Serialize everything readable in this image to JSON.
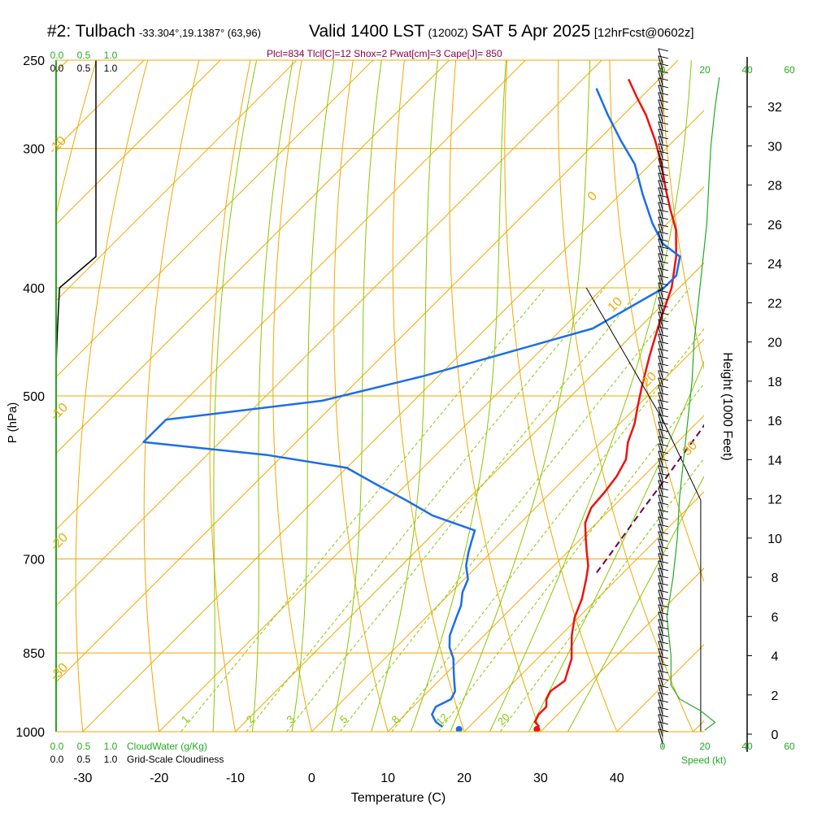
{
  "header": {
    "site": "#2: Tulbach",
    "coords": "-33.304°,19.1387° (63,96)",
    "valid": "Valid 1400 LST",
    "zulu": "(1200Z)",
    "date": "SAT 5 Apr 2025",
    "forecast": "[12hrFcst@0602z]",
    "params": "Plcl=834 Tlcl[C]=12 Shox=2 Pwat[cm]=3 Cape[J]= 850"
  },
  "colors": {
    "isotherm": "#f0a800",
    "dry_adiabat": "#f0a800",
    "moist_adiabat": "#88c800",
    "mixing_ratio": "#88c800",
    "temperature": "#ee1111",
    "dewpoint": "#1a6ee8",
    "parcel": "#6a0048",
    "cloudwater_scale": "#22aa22",
    "speed_profile": "#22aa22",
    "cloudiness": "#000000",
    "params_text": "#8b0045"
  },
  "left_scales": {
    "cloudwater_top": [
      "0.0",
      "0.5",
      "1.0"
    ],
    "cloudiness_top": [
      "0.0",
      "0.5",
      "1.0"
    ],
    "cloudwater_bottom": [
      "0.0",
      "0.5",
      "1.0"
    ],
    "cloudwater_label": "CloudWater (g/Kg)",
    "cloudiness_bottom": [
      "0.0",
      "0.5",
      "1.0"
    ],
    "cloudiness_label": "Grid-Scale Cloudiness"
  },
  "right_scales": {
    "speed_ticks": [
      "0",
      "20",
      "40",
      "60"
    ],
    "speed_label": "Speed (kt)",
    "height_label": "Height (1000 Feet)"
  },
  "chart_data": {
    "type": "line",
    "title": "Skew-T log-P sounding",
    "xlabel": "Temperature (C)",
    "ylabel": "P (hPa)",
    "x_ticks": [
      -30,
      -20,
      -10,
      0,
      10,
      20,
      30,
      40
    ],
    "xlim": [
      -33.5,
      46
    ],
    "pressure_ticks": [
      250,
      300,
      400,
      500,
      700,
      850,
      1000
    ],
    "ylim_pressure": [
      1000,
      250
    ],
    "scale": "log-pressure",
    "height_ticks_kft": [
      0,
      2,
      4,
      6,
      8,
      10,
      12,
      14,
      16,
      18,
      20,
      22,
      24,
      26,
      28,
      30,
      32
    ],
    "isotherm_labels": [
      {
        "label": "-10",
        "temp": -10
      },
      {
        "label": "0",
        "temp": 0
      },
      {
        "label": "10",
        "temp": 10
      },
      {
        "label": "20",
        "temp": 20
      },
      {
        "label": "30",
        "temp": 30
      },
      {
        "label": "-10",
        "temp": -10
      },
      {
        "label": "-20",
        "temp": -20
      },
      {
        "label": "-30",
        "temp": -30
      }
    ],
    "mixing_ratio_labels": [
      "1",
      "2",
      "3",
      "5",
      "8",
      "12",
      "20"
    ],
    "series": [
      {
        "name": "Temperature",
        "points": [
          [
            29.2,
            990
          ],
          [
            28.0,
            980
          ],
          [
            27.5,
            965
          ],
          [
            27.5,
            950
          ],
          [
            26.5,
            935
          ],
          [
            26.0,
            920
          ],
          [
            26.5,
            900
          ],
          [
            25.5,
            880
          ],
          [
            24.5,
            860
          ],
          [
            23.0,
            840
          ],
          [
            21.5,
            820
          ],
          [
            19.5,
            790
          ],
          [
            18.0,
            760
          ],
          [
            16.0,
            730
          ],
          [
            14.5,
            710
          ],
          [
            12.5,
            690
          ],
          [
            10.5,
            670
          ],
          [
            8.5,
            650
          ],
          [
            7.3,
            630
          ],
          [
            7.0,
            610
          ],
          [
            6.5,
            590
          ],
          [
            5.5,
            570
          ],
          [
            3.5,
            550
          ],
          [
            2.0,
            530
          ],
          [
            0.0,
            510
          ],
          [
            -2.0,
            490
          ],
          [
            -5.0,
            460
          ],
          [
            -8.0,
            430
          ],
          [
            -11.0,
            400
          ],
          [
            -14.5,
            375
          ],
          [
            -18.0,
            355
          ],
          [
            -21.5,
            340
          ],
          [
            -25.0,
            325
          ],
          [
            -28.5,
            310
          ],
          [
            -32.5,
            295
          ],
          [
            -37.0,
            280
          ],
          [
            -40.5,
            270
          ],
          [
            -44.0,
            260
          ]
        ]
      },
      {
        "name": "Dewpoint",
        "points": [
          [
            16.5,
            990
          ],
          [
            15.0,
            980
          ],
          [
            13.5,
            965
          ],
          [
            13.0,
            950
          ],
          [
            14.0,
            935
          ],
          [
            13.5,
            920
          ],
          [
            12.0,
            900
          ],
          [
            10.5,
            880
          ],
          [
            9.0,
            860
          ],
          [
            7.0,
            840
          ],
          [
            5.5,
            820
          ],
          [
            4.0,
            790
          ],
          [
            3.0,
            770
          ],
          [
            1.5,
            750
          ],
          [
            0.5,
            730
          ],
          [
            -1.5,
            710
          ],
          [
            -3.0,
            690
          ],
          [
            -4.0,
            675
          ],
          [
            -5.0,
            660
          ],
          [
            -12.5,
            640
          ],
          [
            -18.0,
            620
          ],
          [
            -24.0,
            600
          ],
          [
            -30.0,
            580
          ],
          [
            -42.0,
            565
          ],
          [
            -60.0,
            550
          ],
          [
            -60.0,
            525
          ],
          [
            -42.0,
            505
          ],
          [
            -32.0,
            480
          ],
          [
            -25.0,
            460
          ],
          [
            -16.0,
            435
          ],
          [
            -12.0,
            400
          ],
          [
            -12.0,
            390
          ],
          [
            -14.0,
            375
          ],
          [
            -18.0,
            365
          ],
          [
            -22.0,
            350
          ],
          [
            -27.0,
            330
          ],
          [
            -32.0,
            310
          ],
          [
            -37.0,
            295
          ],
          [
            -42.0,
            280
          ],
          [
            -47.0,
            265
          ]
        ]
      },
      {
        "name": "Parcel",
        "points": [
          [
            16.5,
            720
          ],
          [
            15.8,
            690
          ],
          [
            15.0,
            660
          ],
          [
            14.2,
            630
          ],
          [
            13.4,
            600
          ],
          [
            12.5,
            570
          ],
          [
            11.6,
            540
          ],
          [
            10.5,
            510
          ],
          [
            9.2,
            480
          ],
          [
            7.5,
            450
          ],
          [
            5.4,
            420
          ],
          [
            3.0,
            390
          ],
          [
            0.3,
            360
          ],
          [
            -2.8,
            335
          ],
          [
            -6.0,
            315
          ],
          [
            -9.5,
            300
          ],
          [
            -13.5,
            285
          ],
          [
            -18.0,
            272
          ],
          [
            -22.0,
            262
          ]
        ]
      }
    ],
    "surface_dots": [
      {
        "name": "Temperature",
        "temp": 29.2,
        "pressure": 995
      },
      {
        "name": "Dewpoint",
        "temp": 19.0,
        "pressure": 995
      }
    ],
    "cloudiness_profile": [
      [
        0.7,
        250
      ],
      [
        0.7,
        290
      ],
      [
        0.7,
        330
      ],
      [
        0.7,
        375
      ],
      [
        0.06,
        400
      ],
      [
        0.02,
        440
      ],
      [
        0.0,
        470
      ]
    ],
    "cloudwater_profile": [
      [
        0.0,
        250
      ],
      [
        0.0,
        1000
      ]
    ],
    "wind_speed_profile_kt": [
      [
        20,
        0.2
      ],
      [
        25,
        0.6
      ],
      [
        18,
        1.2
      ],
      [
        8,
        1.8
      ],
      [
        4,
        2.5
      ],
      [
        4,
        4
      ],
      [
        2,
        6
      ],
      [
        5,
        8
      ],
      [
        7,
        10
      ],
      [
        8,
        12
      ],
      [
        10,
        14
      ],
      [
        12,
        16
      ],
      [
        14,
        18
      ],
      [
        15,
        20
      ],
      [
        17,
        22
      ],
      [
        19,
        24
      ],
      [
        21,
        26
      ],
      [
        22,
        28
      ],
      [
        23,
        30
      ],
      [
        25,
        32
      ],
      [
        27,
        33.5
      ]
    ],
    "tropopause_outline": [
      [
        36,
        400
      ],
      [
        46,
        525
      ],
      [
        51,
        620
      ],
      [
        51,
        1000
      ]
    ]
  }
}
